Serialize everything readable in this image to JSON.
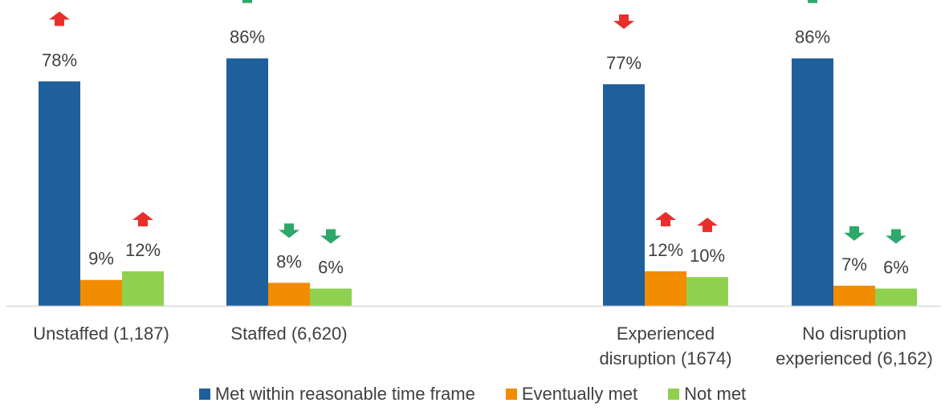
{
  "chart_data": {
    "type": "bar",
    "title": "",
    "xlabel": "",
    "ylabel": "",
    "ylim": [
      0,
      100
    ],
    "groups": [
      {
        "category": "Unstaffed (1,187)",
        "label_lines": [
          "Unstaffed (1,187)"
        ]
      },
      {
        "category": "Staffed (6,620)",
        "label_lines": [
          "Staffed (6,620)"
        ]
      },
      {
        "category": "Experienced disruption (1674)",
        "label_lines": [
          "Experienced",
          "disruption (1674)"
        ]
      },
      {
        "category": "No disruption experienced (6,162)",
        "label_lines": [
          "No disruption",
          "experienced (6,162)"
        ]
      }
    ],
    "series": [
      {
        "name": "Met within reasonable time frame",
        "color": "#1F5F9C",
        "values": [
          78,
          86,
          77,
          86
        ],
        "labels": [
          "78%",
          "86%",
          "77%",
          "86%"
        ],
        "arrows": [
          "up-red",
          "up-green",
          "down-red",
          "up-green"
        ]
      },
      {
        "name": "Eventually met",
        "color": "#F28C00",
        "values": [
          9,
          8,
          12,
          7
        ],
        "labels": [
          "9%",
          "8%",
          "12%",
          "7%"
        ],
        "arrows": [
          "none",
          "down-green",
          "up-red",
          "down-green"
        ]
      },
      {
        "name": "Not met",
        "color": "#8FD14F",
        "values": [
          12,
          6,
          10,
          6
        ],
        "labels": [
          "12%",
          "6%",
          "10%",
          "6%"
        ],
        "arrows": [
          "up-red",
          "down-green",
          "up-red",
          "down-green"
        ]
      }
    ],
    "grid": false,
    "legend_position": "bottom",
    "arrow_colors": {
      "red": "#E8302A",
      "green": "#2EA86A"
    },
    "axis_color": "#D9D9D9",
    "text_color": "#404040"
  }
}
